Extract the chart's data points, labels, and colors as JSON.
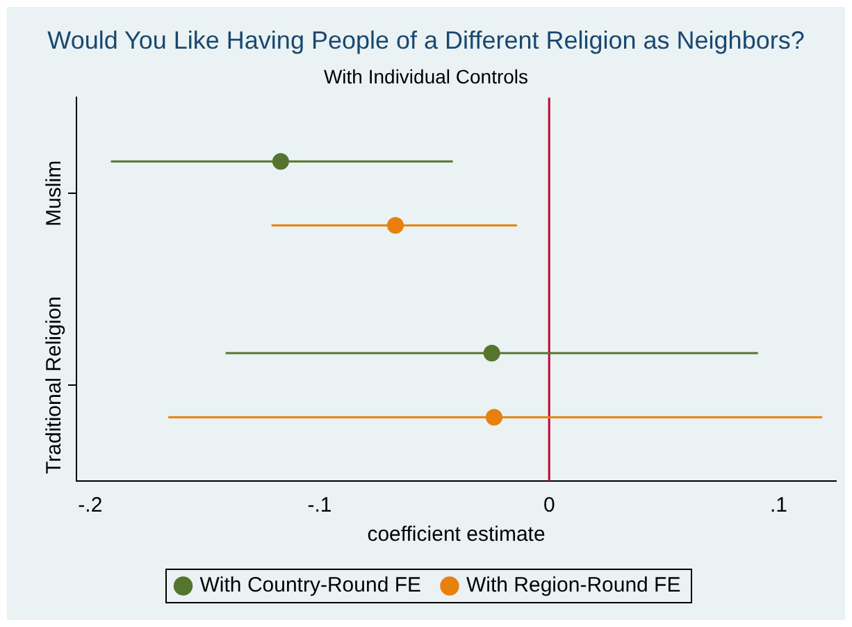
{
  "chart_data": {
    "type": "scatter",
    "orientation": "horizontal",
    "title": "Would You Like Having People of a Different Religion as Neighbors?",
    "subtitle": "With Individual Controls",
    "xlabel": "coefficient estimate",
    "categories": [
      "Muslim",
      "Traditional Religion"
    ],
    "series": [
      {
        "name": "With Country-Round FE",
        "color": "#55752f",
        "values": [
          -0.117,
          -0.025
        ],
        "errors": [
          [
            -0.191,
            -0.042
          ],
          [
            -0.141,
            0.091
          ]
        ]
      },
      {
        "name": "With Region-Round FE",
        "color": "#e8800d",
        "values": [
          -0.067,
          -0.024
        ],
        "errors": [
          [
            -0.121,
            -0.014
          ],
          [
            -0.166,
            0.119
          ]
        ]
      }
    ],
    "xlim": [
      -0.206,
      0.125
    ],
    "xticks": [
      {
        "value": -0.2,
        "label": "-.2"
      },
      {
        "value": -0.1,
        "label": "-.1"
      },
      {
        "value": 0,
        "label": "0"
      },
      {
        "value": 0.1,
        "label": ".1"
      }
    ],
    "ref_lines": [
      {
        "axis": "x",
        "value": 0,
        "color": "#c10534"
      }
    ],
    "legend": "bottom",
    "marker": "circle",
    "grid": false
  }
}
